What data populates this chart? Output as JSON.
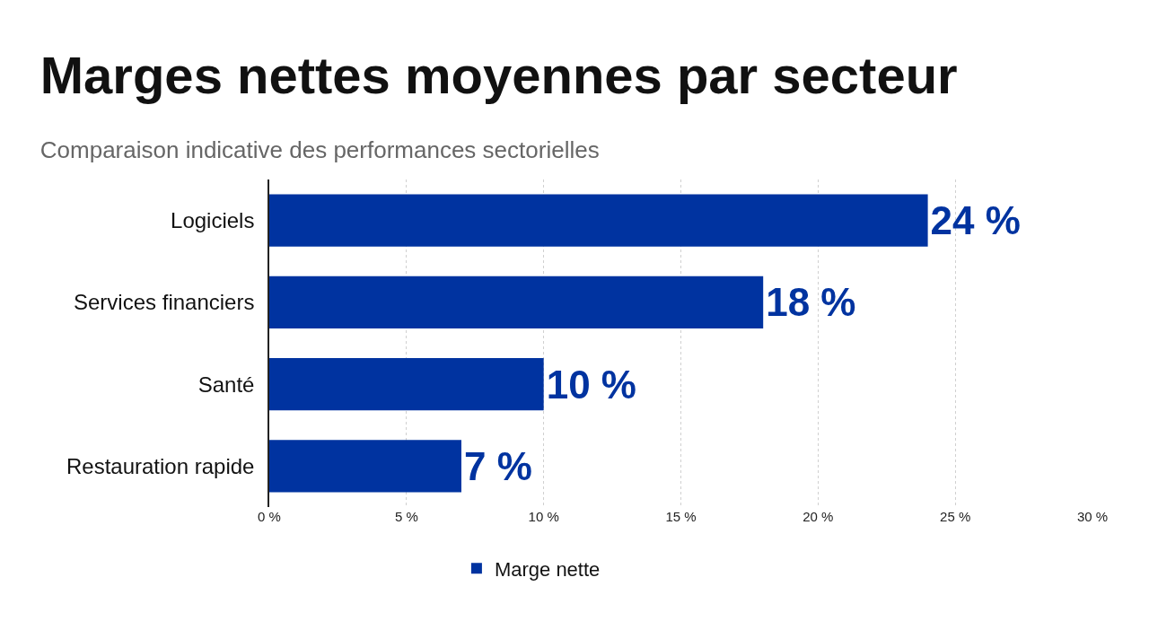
{
  "chart_data": {
    "type": "bar",
    "orientation": "horizontal",
    "title": "Marges nettes moyennes par secteur",
    "subtitle": "Comparaison indicative des performances sectorielles",
    "categories": [
      "Logiciels",
      "Services financiers",
      "Santé",
      "Restauration rapide"
    ],
    "series": [
      {
        "name": "Marge nette",
        "color": "#0033a0",
        "values": [
          24,
          18,
          10,
          7
        ],
        "value_labels": [
          "24 %",
          "18 %",
          "10 %",
          "7 %"
        ]
      }
    ],
    "xlim": [
      0,
      30
    ],
    "xticks": [
      {
        "value": 0,
        "label": "0 %"
      },
      {
        "value": 5,
        "label": "5 %"
      },
      {
        "value": 10,
        "label": "10 %"
      },
      {
        "value": 15,
        "label": "15 %"
      },
      {
        "value": 20,
        "label": "20 %"
      },
      {
        "value": 25,
        "label": "25 %"
      },
      {
        "value": 30,
        "label": "30 %"
      }
    ],
    "grid": "x",
    "legend": "bottom"
  }
}
